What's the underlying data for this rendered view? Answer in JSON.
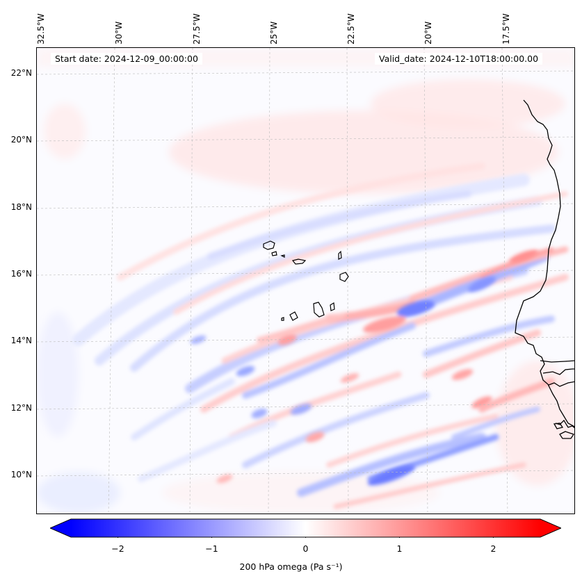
{
  "map": {
    "start_date": "Start date: 2024-12-09_00:00:00",
    "valid_date": "Valid_date: 2024-12-10T18:00:00.00",
    "lon_labels": [
      "32.5°W",
      "30°W",
      "27.5°W",
      "25°W",
      "22.5°W",
      "20°W",
      "17.5°W"
    ],
    "lat_labels": [
      "22°N",
      "20°N",
      "18°N",
      "16°N",
      "14°N",
      "12°N",
      "10°N"
    ],
    "lon_range": [
      -32.5,
      -15.0
    ],
    "lat_range": [
      8.9,
      22.8
    ],
    "variable": "200 hPa omega",
    "colormap": "bwr"
  },
  "colorbar": {
    "ticks": [
      "−2",
      "−1",
      "0",
      "1",
      "2"
    ],
    "tick_values": [
      -2,
      -1,
      0,
      1,
      2
    ],
    "range": [
      -2.5,
      2.5
    ],
    "label": "200 hPa omega (Pa s⁻¹)",
    "colors": {
      "neg": "#0000ff",
      "mid": "#ffffff",
      "pos": "#ff0000"
    }
  }
}
